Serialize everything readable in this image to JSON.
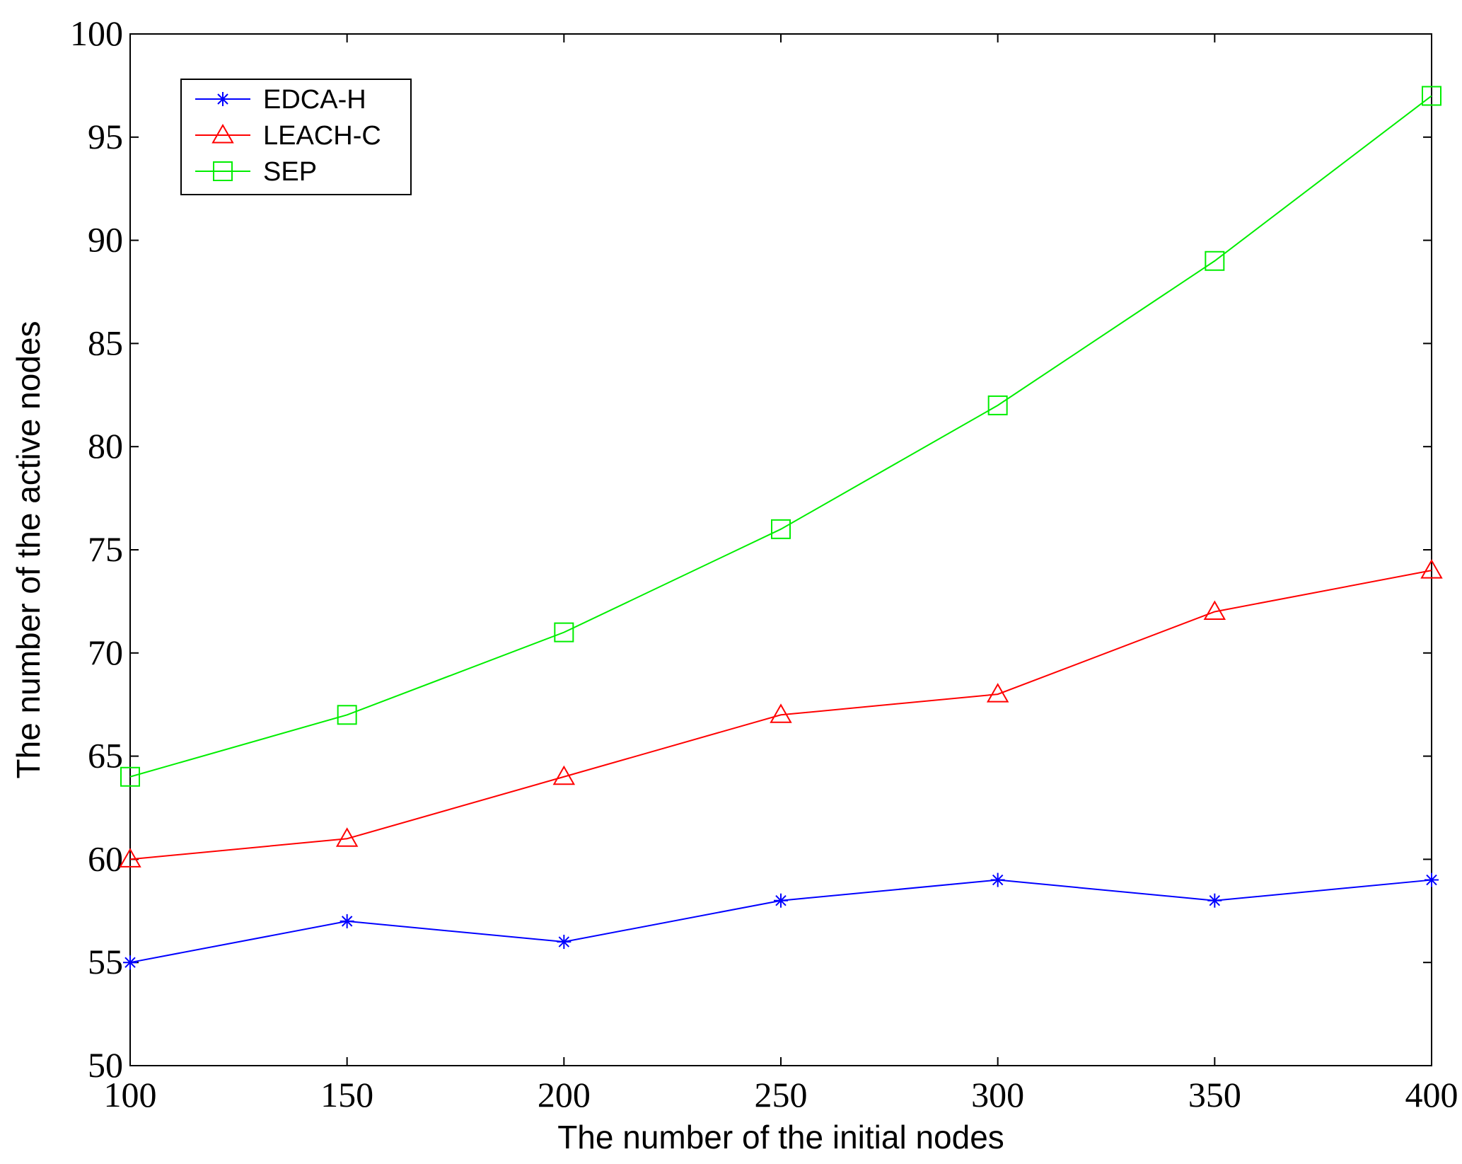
{
  "chart_data": {
    "type": "line",
    "xlabel": "The number of the initial nodes",
    "ylabel": "The number of the active nodes",
    "xlim": [
      100,
      400
    ],
    "ylim": [
      50,
      100
    ],
    "xticks": [
      100,
      150,
      200,
      250,
      300,
      350,
      400
    ],
    "yticks": [
      50,
      55,
      60,
      65,
      70,
      75,
      80,
      85,
      90,
      95,
      100
    ],
    "grid": false,
    "legend_position": "top-left",
    "x": [
      100,
      150,
      200,
      250,
      300,
      350,
      400
    ],
    "series": [
      {
        "name": "EDCA-H",
        "color": "#0000ff",
        "marker": "asterisk",
        "values": [
          55,
          57,
          56,
          58,
          59,
          58,
          59
        ]
      },
      {
        "name": "LEACH-C",
        "color": "#ff0000",
        "marker": "triangle",
        "values": [
          60,
          61,
          64,
          67,
          68,
          72,
          74
        ]
      },
      {
        "name": "SEP",
        "color": "#00ee00",
        "marker": "square",
        "values": [
          64,
          67,
          71,
          76,
          82,
          89,
          97
        ]
      }
    ]
  }
}
